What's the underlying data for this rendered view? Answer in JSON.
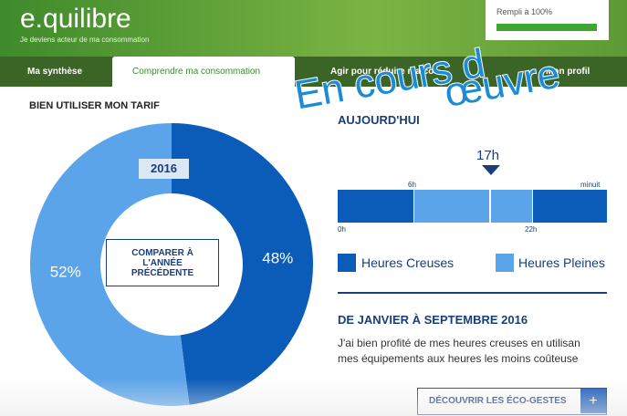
{
  "header": {
    "logo": "e.quilibre",
    "tagline": "Je deviens acteur de ma consommation",
    "progress": {
      "value": 100,
      "label": "Rempli à 100%"
    },
    "overlay": [
      "En cours d",
      "œuvre"
    ]
  },
  "tabs": [
    "Ma synthèse",
    "Comprendre ma consommation",
    "Agir pour réduire ma co",
    "Mon profil"
  ],
  "left": {
    "title": "BIEN UTILISER MON TARIF",
    "chart_data": {
      "type": "donut",
      "year": "2016",
      "button": "COMPARER À L'ANNÉE PRÉCÉDENTE",
      "series": [
        {
          "name": "Heures Creuses",
          "color": "#0b5bb8",
          "values": [
            48
          ],
          "value_labels": [
            "48%"
          ]
        },
        {
          "name": "Heures Pleines",
          "color": "#5ca4ea",
          "values": [
            52
          ],
          "value_labels": [
            "52%"
          ]
        }
      ]
    }
  },
  "right": {
    "title": "AUJOURD'HUI",
    "now": "17h",
    "timeline": {
      "top_labels": [
        "6h",
        "minuit"
      ],
      "bottom_labels": [
        "0h",
        "22h"
      ]
    },
    "legend": [
      "Heures Creuses",
      "Heures Pleines"
    ],
    "period_title": "DE JANVIER À SEPTEMBRE 2016",
    "text": [
      "J'ai bien profité de mes heures creuses en utilisan",
      "mes équipements aux heures les moins coûteuse"
    ],
    "button": "DÉCOUVRIR LES ÉCO-GESTES",
    "button_icon": "+"
  }
}
